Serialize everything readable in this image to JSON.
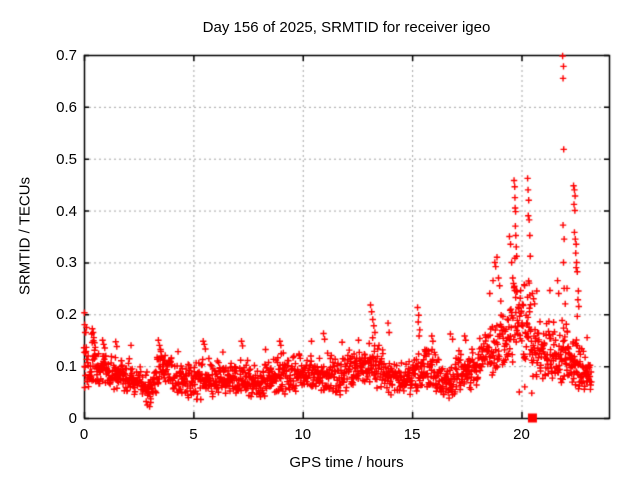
{
  "chart_data": {
    "type": "scatter",
    "title": "Day 156 of 2025, SRMTID for receiver igeo",
    "xlabel": "GPS time / hours",
    "ylabel": "SRMTID / TECUs",
    "xlim": [
      0,
      24
    ],
    "ylim": [
      0,
      0.7
    ],
    "xtick_values": [
      0,
      5,
      10,
      15,
      20
    ],
    "xtick_labels": [
      "0",
      "5",
      "10",
      "15",
      "20"
    ],
    "ytick_values": [
      0,
      0.1,
      0.2,
      0.3,
      0.4,
      0.5,
      0.6,
      0.7
    ],
    "ytick_labels": [
      "0",
      "0.1",
      "0.2",
      "0.3",
      "0.4",
      "0.5",
      "0.6",
      "0.7"
    ],
    "grid": {
      "visible": true,
      "style": "dashed",
      "color": "#a6a6a6"
    },
    "border_color": "#000000",
    "background": "#ffffff",
    "series_name": "SRMTID",
    "marker": {
      "shape": "plus",
      "color": "#ff0000",
      "size": 7
    },
    "prng_seed": 1560,
    "baseline_segments": [
      [
        0.0,
        0.12,
        12,
        0.04,
        0.19
      ],
      [
        0.12,
        0.35,
        16,
        0.05,
        0.12
      ],
      [
        0.35,
        0.6,
        20,
        0.06,
        0.16
      ],
      [
        0.6,
        1.1,
        34,
        0.05,
        0.13
      ],
      [
        1.1,
        1.7,
        40,
        0.05,
        0.125
      ],
      [
        1.7,
        2.3,
        40,
        0.045,
        0.12
      ],
      [
        2.3,
        2.65,
        22,
        0.04,
        0.1
      ],
      [
        2.65,
        3.3,
        45,
        0.02,
        0.09
      ],
      [
        3.3,
        4.0,
        48,
        0.05,
        0.13
      ],
      [
        4.0,
        5.0,
        68,
        0.045,
        0.115
      ],
      [
        5.0,
        6.0,
        68,
        0.04,
        0.125
      ],
      [
        6.0,
        7.0,
        68,
        0.04,
        0.115
      ],
      [
        7.0,
        8.0,
        68,
        0.045,
        0.12
      ],
      [
        8.0,
        9.0,
        68,
        0.045,
        0.12
      ],
      [
        9.0,
        10.0,
        68,
        0.04,
        0.125
      ],
      [
        10.0,
        11.0,
        68,
        0.05,
        0.125
      ],
      [
        11.0,
        12.0,
        68,
        0.04,
        0.13
      ],
      [
        12.0,
        13.0,
        68,
        0.05,
        0.13
      ],
      [
        13.0,
        13.8,
        55,
        0.055,
        0.155
      ],
      [
        13.8,
        15.0,
        80,
        0.05,
        0.12
      ],
      [
        15.0,
        16.1,
        75,
        0.05,
        0.145
      ],
      [
        16.1,
        17.0,
        62,
        0.04,
        0.12
      ],
      [
        17.0,
        18.0,
        66,
        0.055,
        0.145
      ],
      [
        18.0,
        19.0,
        66,
        0.07,
        0.18
      ],
      [
        19.0,
        19.6,
        42,
        0.08,
        0.22
      ],
      [
        19.6,
        20.45,
        62,
        0.1,
        0.28
      ],
      [
        20.45,
        21.3,
        62,
        0.07,
        0.21
      ],
      [
        21.3,
        22.25,
        72,
        0.06,
        0.185
      ],
      [
        22.25,
        22.85,
        50,
        0.05,
        0.155
      ],
      [
        22.85,
        23.2,
        32,
        0.05,
        0.125
      ]
    ],
    "outlier_points": [
      [
        0.02,
        0.203
      ],
      [
        0.03,
        0.18
      ],
      [
        0.05,
        0.165
      ],
      [
        0.38,
        0.172
      ],
      [
        0.42,
        0.165
      ],
      [
        0.45,
        0.155
      ],
      [
        0.48,
        0.145
      ],
      [
        0.85,
        0.15
      ],
      [
        0.9,
        0.142
      ],
      [
        0.95,
        0.135
      ],
      [
        1.45,
        0.147
      ],
      [
        1.5,
        0.138
      ],
      [
        2.15,
        0.14
      ],
      [
        2.9,
        0.025
      ],
      [
        3.0,
        0.022
      ],
      [
        3.05,
        0.03
      ],
      [
        3.4,
        0.15
      ],
      [
        3.45,
        0.14
      ],
      [
        3.5,
        0.132
      ],
      [
        4.3,
        0.128
      ],
      [
        5.45,
        0.148
      ],
      [
        5.5,
        0.142
      ],
      [
        5.55,
        0.133
      ],
      [
        6.35,
        0.127
      ],
      [
        7.2,
        0.148
      ],
      [
        7.25,
        0.139
      ],
      [
        8.3,
        0.132
      ],
      [
        8.95,
        0.148
      ],
      [
        9.0,
        0.14
      ],
      [
        10.4,
        0.148
      ],
      [
        10.95,
        0.163
      ],
      [
        11.0,
        0.152
      ],
      [
        11.8,
        0.146
      ],
      [
        12.55,
        0.15
      ],
      [
        13.1,
        0.218
      ],
      [
        13.15,
        0.205
      ],
      [
        13.2,
        0.19
      ],
      [
        13.25,
        0.178
      ],
      [
        13.3,
        0.165
      ],
      [
        13.9,
        0.183
      ],
      [
        13.95,
        0.165
      ],
      [
        15.25,
        0.213
      ],
      [
        15.3,
        0.198
      ],
      [
        15.28,
        0.185
      ],
      [
        15.35,
        0.17
      ],
      [
        15.32,
        0.158
      ],
      [
        15.9,
        0.158
      ],
      [
        15.95,
        0.148
      ],
      [
        16.75,
        0.162
      ],
      [
        16.85,
        0.152
      ],
      [
        17.4,
        0.158
      ],
      [
        17.45,
        0.15
      ],
      [
        18.55,
        0.24
      ],
      [
        18.7,
        0.265
      ],
      [
        18.78,
        0.3
      ],
      [
        18.82,
        0.292
      ],
      [
        18.88,
        0.31
      ],
      [
        18.95,
        0.27
      ],
      [
        19.0,
        0.255
      ],
      [
        19.45,
        0.35
      ],
      [
        19.5,
        0.335
      ],
      [
        19.55,
        0.3
      ],
      [
        19.6,
        0.27
      ],
      [
        19.66,
        0.458
      ],
      [
        19.69,
        0.446
      ],
      [
        19.7,
        0.425
      ],
      [
        19.71,
        0.405
      ],
      [
        19.73,
        0.398
      ],
      [
        19.72,
        0.37
      ],
      [
        19.74,
        0.352
      ],
      [
        19.76,
        0.33
      ],
      [
        19.78,
        0.312
      ],
      [
        19.7,
        0.308
      ],
      [
        19.9,
        0.05
      ],
      [
        20.15,
        0.06
      ],
      [
        20.47,
        0.048
      ],
      [
        20.28,
        0.462
      ],
      [
        20.3,
        0.44
      ],
      [
        20.33,
        0.42
      ],
      [
        20.31,
        0.39
      ],
      [
        20.35,
        0.382
      ],
      [
        20.38,
        0.352
      ],
      [
        20.4,
        0.312
      ],
      [
        20.35,
        0.26
      ],
      [
        20.38,
        0.237
      ],
      [
        20.5,
        0.24
      ],
      [
        20.55,
        0.23
      ],
      [
        20.6,
        0.22
      ],
      [
        20.7,
        0.245
      ],
      [
        21.3,
        0.246
      ],
      [
        21.65,
        0.265
      ],
      [
        21.7,
        0.24
      ],
      [
        21.88,
        0.698
      ],
      [
        21.92,
        0.678
      ],
      [
        21.9,
        0.655
      ],
      [
        21.93,
        0.518
      ],
      [
        21.9,
        0.372
      ],
      [
        21.95,
        0.345
      ],
      [
        21.92,
        0.3
      ],
      [
        21.95,
        0.25
      ],
      [
        22.0,
        0.22
      ],
      [
        22.08,
        0.25
      ],
      [
        22.38,
        0.448
      ],
      [
        22.42,
        0.44
      ],
      [
        22.45,
        0.428
      ],
      [
        22.4,
        0.412
      ],
      [
        22.44,
        0.4
      ],
      [
        22.42,
        0.358
      ],
      [
        22.46,
        0.345
      ],
      [
        22.5,
        0.335
      ],
      [
        22.48,
        0.318
      ],
      [
        22.52,
        0.3
      ],
      [
        22.5,
        0.29
      ],
      [
        22.55,
        0.282
      ],
      [
        22.6,
        0.245
      ],
      [
        22.58,
        0.228
      ],
      [
        22.62,
        0.215
      ],
      [
        22.55,
        0.196
      ],
      [
        23.0,
        0.155
      ]
    ],
    "special_points": [
      {
        "x": 20.5,
        "y": 0,
        "marker": "filled-square",
        "color": "#ff0000",
        "size": 9
      }
    ]
  }
}
